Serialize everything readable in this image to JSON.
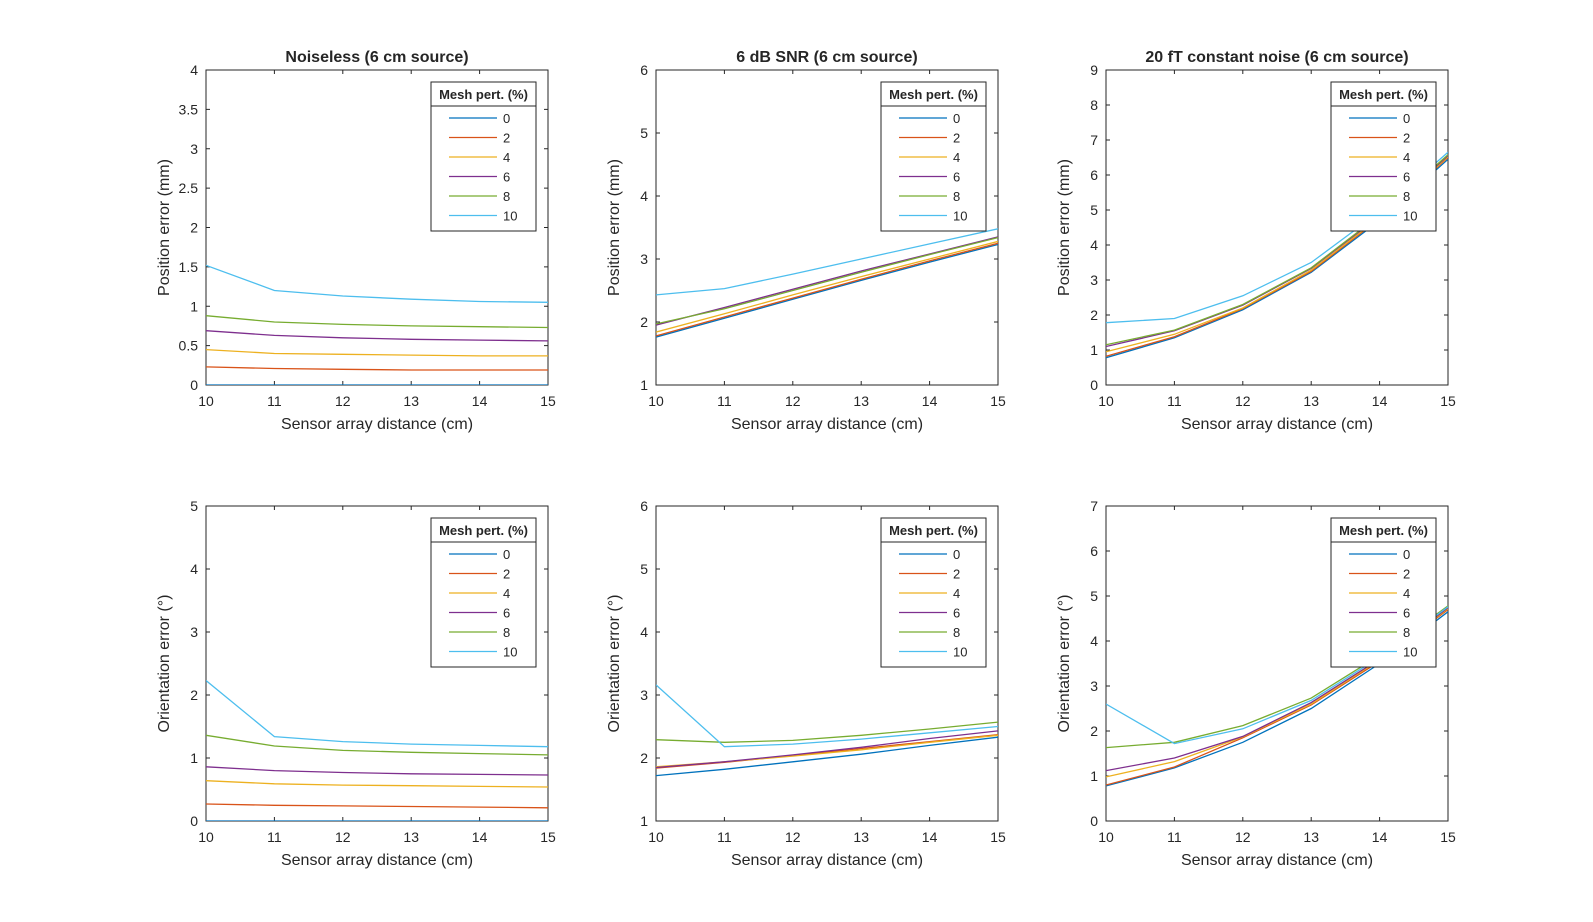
{
  "chart_data": [
    {
      "type": "line",
      "title": "Noiseless (6 cm source)",
      "xlabel": "Sensor array distance (cm)",
      "ylabel": "Position error (mm)",
      "x": [
        10,
        11,
        12,
        13,
        14,
        15
      ],
      "xlim": [
        10,
        15
      ],
      "ylim": [
        0,
        4
      ],
      "yticks": [
        "0",
        "0.5",
        "1",
        "1.5",
        "2",
        "2.5",
        "3",
        "3.5",
        "4"
      ],
      "xticks": [
        "10",
        "11",
        "12",
        "13",
        "14",
        "15"
      ],
      "legend_title": "Mesh pert. (%)",
      "legend_position": "top-right",
      "grid": false,
      "series": [
        {
          "name": "0",
          "values": [
            0.0,
            0.0,
            0.0,
            0.0,
            0.0,
            0.0
          ]
        },
        {
          "name": "2",
          "values": [
            0.23,
            0.21,
            0.2,
            0.19,
            0.19,
            0.19
          ]
        },
        {
          "name": "4",
          "values": [
            0.45,
            0.4,
            0.39,
            0.38,
            0.37,
            0.37
          ]
        },
        {
          "name": "6",
          "values": [
            0.69,
            0.63,
            0.6,
            0.58,
            0.57,
            0.56
          ]
        },
        {
          "name": "8",
          "values": [
            0.88,
            0.8,
            0.77,
            0.75,
            0.74,
            0.73
          ]
        },
        {
          "name": "10",
          "values": [
            1.52,
            1.2,
            1.13,
            1.09,
            1.06,
            1.05
          ]
        }
      ]
    },
    {
      "type": "line",
      "title": "6 dB SNR (6 cm source)",
      "xlabel": "Sensor array distance (cm)",
      "ylabel": "Position error (mm)",
      "x": [
        10,
        11,
        12,
        13,
        14,
        15
      ],
      "xlim": [
        10,
        15
      ],
      "ylim": [
        1,
        6
      ],
      "yticks": [
        "1",
        "2",
        "3",
        "4",
        "5",
        "6"
      ],
      "xticks": [
        "10",
        "11",
        "12",
        "13",
        "14",
        "15"
      ],
      "legend_title": "Mesh pert. (%)",
      "legend_position": "top-right",
      "grid": false,
      "series": [
        {
          "name": "0",
          "values": [
            1.76,
            2.06,
            2.36,
            2.66,
            2.95,
            3.23
          ]
        },
        {
          "name": "2",
          "values": [
            1.78,
            2.08,
            2.38,
            2.68,
            2.97,
            3.25
          ]
        },
        {
          "name": "4",
          "values": [
            1.84,
            2.13,
            2.43,
            2.72,
            3.0,
            3.28
          ]
        },
        {
          "name": "6",
          "values": [
            1.95,
            2.23,
            2.52,
            2.81,
            3.08,
            3.35
          ]
        },
        {
          "name": "8",
          "values": [
            1.97,
            2.21,
            2.5,
            2.79,
            3.07,
            3.34
          ]
        },
        {
          "name": "10",
          "values": [
            2.43,
            2.53,
            2.76,
            3.0,
            3.24,
            3.48
          ]
        }
      ]
    },
    {
      "type": "line",
      "title": "20 fT constant noise (6 cm source)",
      "xlabel": "Sensor array distance (cm)",
      "ylabel": "Position error (mm)",
      "x": [
        10,
        11,
        12,
        13,
        14,
        15
      ],
      "xlim": [
        10,
        15
      ],
      "ylim": [
        0,
        9
      ],
      "yticks": [
        "0",
        "1",
        "2",
        "3",
        "4",
        "5",
        "6",
        "7",
        "8",
        "9"
      ],
      "xticks": [
        "10",
        "11",
        "12",
        "13",
        "14",
        "15"
      ],
      "legend_title": "Mesh pert. (%)",
      "legend_position": "top-right",
      "grid": false,
      "series": [
        {
          "name": "0",
          "values": [
            0.78,
            1.35,
            2.15,
            3.22,
            4.7,
            6.45
          ]
        },
        {
          "name": "2",
          "values": [
            0.82,
            1.38,
            2.18,
            3.25,
            4.75,
            6.5
          ]
        },
        {
          "name": "4",
          "values": [
            0.95,
            1.45,
            2.2,
            3.28,
            4.78,
            6.52
          ]
        },
        {
          "name": "6",
          "values": [
            1.1,
            1.55,
            2.28,
            3.33,
            4.82,
            6.55
          ]
        },
        {
          "name": "8",
          "values": [
            1.15,
            1.57,
            2.3,
            3.35,
            4.85,
            6.58
          ]
        },
        {
          "name": "10",
          "values": [
            1.78,
            1.9,
            2.55,
            3.5,
            4.95,
            6.65
          ]
        }
      ]
    },
    {
      "type": "line",
      "title": "",
      "xlabel": "Sensor array distance (cm)",
      "ylabel": "Orientation error (°)",
      "x": [
        10,
        11,
        12,
        13,
        14,
        15
      ],
      "xlim": [
        10,
        15
      ],
      "ylim": [
        0,
        5
      ],
      "yticks": [
        "0",
        "1",
        "2",
        "3",
        "4",
        "5"
      ],
      "xticks": [
        "10",
        "11",
        "12",
        "13",
        "14",
        "15"
      ],
      "legend_title": "Mesh pert. (%)",
      "legend_position": "top-right",
      "grid": false,
      "series": [
        {
          "name": "0",
          "values": [
            0.0,
            0.0,
            0.0,
            0.0,
            0.0,
            0.0
          ]
        },
        {
          "name": "2",
          "values": [
            0.27,
            0.25,
            0.24,
            0.23,
            0.22,
            0.21
          ]
        },
        {
          "name": "4",
          "values": [
            0.64,
            0.59,
            0.57,
            0.56,
            0.55,
            0.54
          ]
        },
        {
          "name": "6",
          "values": [
            0.86,
            0.8,
            0.77,
            0.75,
            0.74,
            0.73
          ]
        },
        {
          "name": "8",
          "values": [
            1.36,
            1.19,
            1.12,
            1.09,
            1.07,
            1.05
          ]
        },
        {
          "name": "10",
          "values": [
            2.23,
            1.34,
            1.26,
            1.22,
            1.2,
            1.18
          ]
        }
      ]
    },
    {
      "type": "line",
      "title": "",
      "xlabel": "Sensor array distance (cm)",
      "ylabel": "Orientation error (°)",
      "x": [
        10,
        11,
        12,
        13,
        14,
        15
      ],
      "xlim": [
        10,
        15
      ],
      "ylim": [
        1,
        6
      ],
      "yticks": [
        "1",
        "2",
        "3",
        "4",
        "5",
        "6"
      ],
      "xticks": [
        "10",
        "11",
        "12",
        "13",
        "14",
        "15"
      ],
      "legend_title": "Mesh pert. (%)",
      "legend_position": "top-right",
      "grid": false,
      "series": [
        {
          "name": "0",
          "values": [
            1.72,
            1.82,
            1.94,
            2.06,
            2.2,
            2.33
          ]
        },
        {
          "name": "2",
          "values": [
            1.84,
            1.93,
            2.04,
            2.15,
            2.26,
            2.37
          ]
        },
        {
          "name": "4",
          "values": [
            1.86,
            1.94,
            2.03,
            2.13,
            2.25,
            2.36
          ]
        },
        {
          "name": "6",
          "values": [
            1.85,
            1.94,
            2.05,
            2.17,
            2.31,
            2.43
          ]
        },
        {
          "name": "8",
          "values": [
            2.29,
            2.25,
            2.28,
            2.36,
            2.46,
            2.57
          ]
        },
        {
          "name": "10",
          "values": [
            3.16,
            2.18,
            2.22,
            2.3,
            2.4,
            2.5
          ]
        }
      ]
    },
    {
      "type": "line",
      "title": "",
      "xlabel": "Sensor array distance (cm)",
      "ylabel": "Orientation error (°)",
      "x": [
        10,
        11,
        12,
        13,
        14,
        15
      ],
      "xlim": [
        10,
        15
      ],
      "ylim": [
        0,
        7
      ],
      "yticks": [
        "0",
        "1",
        "2",
        "3",
        "4",
        "5",
        "6",
        "7"
      ],
      "xticks": [
        "10",
        "11",
        "12",
        "13",
        "14",
        "15"
      ],
      "legend_title": "Mesh pert. (%)",
      "legend_position": "top-right",
      "grid": false,
      "series": [
        {
          "name": "0",
          "values": [
            0.78,
            1.18,
            1.75,
            2.5,
            3.5,
            4.65
          ]
        },
        {
          "name": "2",
          "values": [
            0.8,
            1.2,
            1.85,
            2.58,
            3.55,
            4.7
          ]
        },
        {
          "name": "4",
          "values": [
            0.98,
            1.32,
            1.87,
            2.6,
            3.58,
            4.72
          ]
        },
        {
          "name": "6",
          "values": [
            1.12,
            1.4,
            1.88,
            2.63,
            3.6,
            4.74
          ]
        },
        {
          "name": "8",
          "values": [
            1.63,
            1.75,
            2.12,
            2.73,
            3.68,
            4.78
          ]
        },
        {
          "name": "10",
          "values": [
            2.6,
            1.72,
            2.05,
            2.68,
            3.64,
            4.76
          ]
        }
      ]
    }
  ],
  "colors": [
    "#0072BD",
    "#D95319",
    "#EDB120",
    "#7E2F8E",
    "#77AC30",
    "#4DBEEE"
  ]
}
